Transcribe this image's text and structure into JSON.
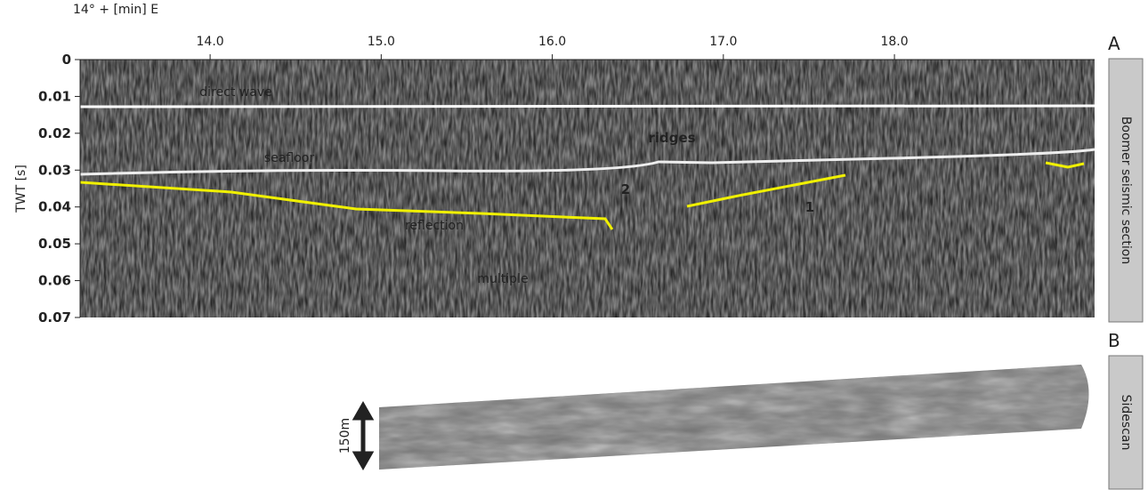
{
  "figure": {
    "panel_a": {
      "letter": "A",
      "side_label": "Boomer seismic section",
      "x_axis_label": "14° + [min] E",
      "y_axis_label": "TWT [s]",
      "xlim": [
        13.24,
        19.17
      ],
      "ylim": [
        0,
        0.07
      ],
      "xticks": [
        {
          "value": 14,
          "label": "14.0"
        },
        {
          "value": 15,
          "label": "15.0"
        },
        {
          "value": 16,
          "label": "16.0"
        },
        {
          "value": 17,
          "label": "17.0"
        },
        {
          "value": 18,
          "label": "18.0"
        }
      ],
      "yticks": [
        0,
        0.01,
        0.02,
        0.03,
        0.04,
        0.05,
        0.06,
        0.07
      ],
      "annotations": [
        "direct wave",
        "seafloor",
        "ridges",
        "2",
        "1",
        "reflection",
        "multiple"
      ]
    },
    "panel_b": {
      "letter": "B",
      "side_label": "Sidescan",
      "scale_label": "150m"
    }
  }
}
